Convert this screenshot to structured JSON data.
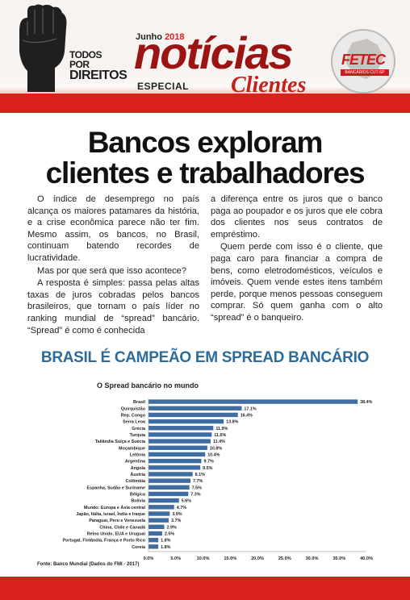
{
  "header": {
    "campaign_line1": "TODOS POR",
    "campaign_line2": "DIREITOS",
    "date_month": "Junho",
    "date_year": "2018",
    "masthead": "notícias",
    "edition": "ESPECIAL",
    "audience": "Clientes",
    "logo_name": "FETEC",
    "logo_sub": "BANCÁRIOS CUT-SP"
  },
  "headline": {
    "line1": "Bancos exploram",
    "line2": "clientes e trabalhadores"
  },
  "body": {
    "col1": [
      "O índice de desemprego no país alcança os maiores patamares da história, e a crise econômica parece não ter fim. Mesmo assim, os bancos, no Brasil, continuam batendo recordes de lucratividade.",
      "Mas por que será que isso acontece?",
      "A resposta é simples: passa pelas altas taxas de juros cobradas pelos bancos brasileiros, que tornam o país líder no ranking mundial de “spread” bancário. “Spread” é como é conhecida"
    ],
    "col2": [
      "a diferença entre os juros que o banco paga ao poupador e os juros que ele cobra dos clientes nos seus contratos de empréstimo.",
      "Quem perde com isso é o cliente, que paga caro para financiar a compra de bens, como eletrodomésticos, veículos e imóveis. Quem vende estes itens também perde, porque menos pessoas conseguem comprar. Só quem ganha com o alto “spread” é o banqueiro."
    ]
  },
  "section_title": "BRASIL É CAMPEÃO EM SPREAD BANCÁRIO",
  "chart_data": {
    "type": "bar",
    "orientation": "horizontal",
    "title": "O Spread bancário no mundo",
    "categories": [
      "Brasil",
      "Quirquistão",
      "Rep. Congo",
      "Serra Leoa",
      "Grécia",
      "Turquia",
      "Tailândia  Suíça e Suécia",
      "Moçambique",
      "Letônia",
      "Argentina",
      "Angola",
      "Áustria",
      "Colômbia",
      "Espanha, Sudão e Suriname",
      "Bélgica",
      "Bolívia",
      "Mundo: Europa e Ásia central",
      "Japão, Itália, Israel, Índia e Iraque",
      "Paraguai, Peru e Venezuela",
      "China, Chile e Canadá",
      "Reino Unido, EUA e Uruguai",
      "Portugal, Finlândia, França e Porto Rico",
      "Coreia"
    ],
    "values": [
      38.4,
      17.1,
      16.4,
      13.8,
      11.9,
      11.6,
      11.4,
      10.8,
      10.4,
      9.7,
      9.5,
      8.1,
      7.7,
      7.5,
      7.3,
      5.6,
      4.7,
      3.9,
      3.7,
      2.9,
      2.5,
      1.8,
      1.8
    ],
    "value_labels": [
      "38.4%",
      "17.1%",
      "16.4%",
      "13.8%",
      "11.9%",
      "11.6%",
      "11.4%",
      "10.8%",
      "10.4%",
      "9.7%",
      "9.5%",
      "8.1%",
      "7.7%",
      "7.5%",
      "7.3%",
      "5.6%",
      "4.7%",
      "3.9%",
      "3.7%",
      "2.9%",
      "2.5%",
      "1.8%",
      "1.8%"
    ],
    "xlim": [
      0,
      40
    ],
    "xticks": [
      "0.0%",
      "5.0%",
      "10.0%",
      "15.0%",
      "20.0%",
      "25.0%",
      "30.0%",
      "35.0%",
      "40.0%"
    ],
    "grid": false,
    "bar_color": "#3f6ca1"
  },
  "source": "Fonte: Banco Mundial (Dados do FMI - 2017)",
  "colors": {
    "brand_red": "#d9221c",
    "title_blue": "#2d6b9a"
  }
}
